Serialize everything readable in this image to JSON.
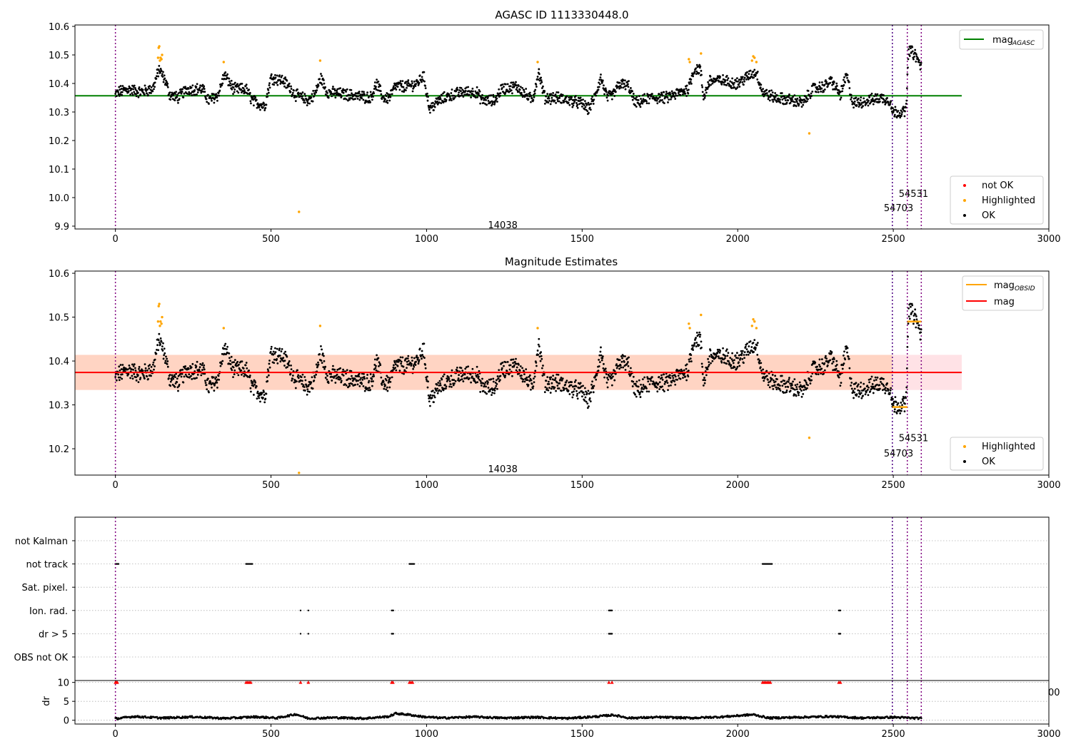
{
  "chart_data": [
    {
      "id": "top",
      "type": "scatter",
      "title": "AGASC ID 1113330448.0",
      "xlim": [
        -130,
        3000
      ],
      "ylim": [
        9.89,
        10.605
      ],
      "xticks": [
        0,
        500,
        1000,
        1500,
        2000,
        2500,
        3000
      ],
      "xtick_labels": [
        "0",
        "500",
        "1000",
        "1500",
        "2000",
        "2500",
        "3000"
      ],
      "yticks": [
        9.9,
        10.0,
        10.1,
        10.2,
        10.3,
        10.4,
        10.5,
        10.6
      ],
      "ytick_labels": [
        "9.9",
        "10.0",
        "10.1",
        "10.2",
        "10.3",
        "10.4",
        "10.5",
        "10.6"
      ],
      "grid": false,
      "series": [
        {
          "name": "not OK",
          "color": "#ff0000",
          "values": []
        },
        {
          "name": "Highlighted",
          "color": "#ffa500",
          "values": [
            [
              137,
              10.49
            ],
            [
              139,
              10.525
            ],
            [
              141,
              10.53
            ],
            [
              143,
              10.48
            ],
            [
              145,
              10.49
            ],
            [
              148,
              10.485
            ],
            [
              150,
              10.5
            ],
            [
              348,
              10.475
            ],
            [
              590,
              9.95
            ],
            [
              658,
              10.48
            ],
            [
              1357,
              10.475
            ],
            [
              1843,
              10.485
            ],
            [
              1846,
              10.475
            ],
            [
              1882,
              10.505
            ],
            [
              2046,
              10.48
            ],
            [
              2050,
              10.495
            ],
            [
              2054,
              10.49
            ],
            [
              2060,
              10.475
            ],
            [
              2230,
              10.225
            ]
          ]
        },
        {
          "name": "OK",
          "color": "#000000",
          "values": []
        }
      ],
      "ok_trend": [
        [
          0,
          10.36
        ],
        [
          10,
          10.37
        ],
        [
          40,
          10.38
        ],
        [
          80,
          10.37
        ],
        [
          120,
          10.38
        ],
        [
          140,
          10.45
        ],
        [
          160,
          10.41
        ],
        [
          175,
          10.36
        ],
        [
          200,
          10.35
        ],
        [
          230,
          10.38
        ],
        [
          280,
          10.38
        ],
        [
          300,
          10.34
        ],
        [
          330,
          10.36
        ],
        [
          350,
          10.43
        ],
        [
          380,
          10.38
        ],
        [
          420,
          10.38
        ],
        [
          440,
          10.34
        ],
        [
          480,
          10.32
        ],
        [
          500,
          10.42
        ],
        [
          540,
          10.41
        ],
        [
          580,
          10.36
        ],
        [
          620,
          10.34
        ],
        [
          640,
          10.36
        ],
        [
          660,
          10.42
        ],
        [
          680,
          10.37
        ],
        [
          750,
          10.36
        ],
        [
          820,
          10.35
        ],
        [
          840,
          10.4
        ],
        [
          860,
          10.35
        ],
        [
          880,
          10.35
        ],
        [
          900,
          10.39
        ],
        [
          940,
          10.39
        ],
        [
          970,
          10.4
        ],
        [
          990,
          10.43
        ],
        [
          1010,
          10.31
        ],
        [
          1040,
          10.34
        ],
        [
          1080,
          10.36
        ],
        [
          1120,
          10.37
        ],
        [
          1160,
          10.37
        ],
        [
          1180,
          10.34
        ],
        [
          1220,
          10.34
        ],
        [
          1240,
          10.38
        ],
        [
          1290,
          10.39
        ],
        [
          1320,
          10.36
        ],
        [
          1340,
          10.34
        ],
        [
          1360,
          10.44
        ],
        [
          1380,
          10.35
        ],
        [
          1420,
          10.35
        ],
        [
          1460,
          10.34
        ],
        [
          1500,
          10.33
        ],
        [
          1520,
          10.31
        ],
        [
          1540,
          10.35
        ],
        [
          1560,
          10.42
        ],
        [
          1580,
          10.35
        ],
        [
          1600,
          10.36
        ],
        [
          1620,
          10.4
        ],
        [
          1650,
          10.39
        ],
        [
          1670,
          10.33
        ],
        [
          1720,
          10.35
        ],
        [
          1770,
          10.35
        ],
        [
          1820,
          10.37
        ],
        [
          1840,
          10.38
        ],
        [
          1860,
          10.45
        ],
        [
          1880,
          10.45
        ],
        [
          1890,
          10.35
        ],
        [
          1910,
          10.41
        ],
        [
          1950,
          10.41
        ],
        [
          2000,
          10.4
        ],
        [
          2040,
          10.43
        ],
        [
          2060,
          10.44
        ],
        [
          2080,
          10.37
        ],
        [
          2120,
          10.35
        ],
        [
          2180,
          10.34
        ],
        [
          2210,
          10.33
        ],
        [
          2240,
          10.38
        ],
        [
          2280,
          10.39
        ],
        [
          2300,
          10.41
        ],
        [
          2330,
          10.36
        ],
        [
          2350,
          10.43
        ],
        [
          2370,
          10.33
        ],
        [
          2420,
          10.34
        ],
        [
          2460,
          10.35
        ],
        [
          2490,
          10.34
        ],
        [
          2497,
          10.3
        ],
        [
          2520,
          10.3
        ],
        [
          2540,
          10.3
        ],
        [
          2550,
          10.52
        ],
        [
          2570,
          10.5
        ],
        [
          2590,
          10.46
        ]
      ],
      "ok_spread": 0.018,
      "hlines": [
        {
          "name": "mag_AGASC",
          "y": 10.357,
          "x": [
            -130,
            2720
          ],
          "color": "#008000"
        }
      ],
      "vlines": [
        {
          "x": 0,
          "color": "#800080"
        },
        {
          "x": 2497,
          "color": "#4b0082"
        },
        {
          "x": 2545,
          "color": "#800080"
        },
        {
          "x": 2590,
          "color": "#800080"
        }
      ],
      "annotations": [
        {
          "text": "14038",
          "x": 1245,
          "y": 9.905
        },
        {
          "text": "54531",
          "x": 2565,
          "y": 10.015
        },
        {
          "text": "54703",
          "x": 2517,
          "y": 9.965
        }
      ],
      "legend_lines": [
        {
          "label_main": "mag",
          "label_sub": "AGASC",
          "color": "#008000",
          "position": "upper-right"
        }
      ],
      "legend_points": [
        "not OK",
        "Highlighted",
        "OK"
      ]
    },
    {
      "id": "middle",
      "type": "scatter",
      "title": "Magnitude Estimates",
      "xlim": [
        -130,
        3000
      ],
      "ylim": [
        10.14,
        10.605
      ],
      "xticks": [
        0,
        500,
        1000,
        1500,
        2000,
        2500,
        3000
      ],
      "xtick_labels": [
        "0",
        "500",
        "1000",
        "1500",
        "2000",
        "2500",
        "3000"
      ],
      "yticks": [
        10.2,
        10.3,
        10.4,
        10.5,
        10.6
      ],
      "ytick_labels": [
        "10.2",
        "10.3",
        "10.4",
        "10.5",
        "10.6"
      ],
      "grid": false,
      "series": [
        {
          "name": "Highlighted",
          "color": "#ffa500",
          "values": [
            [
              137,
              10.49
            ],
            [
              139,
              10.525
            ],
            [
              141,
              10.53
            ],
            [
              143,
              10.48
            ],
            [
              145,
              10.49
            ],
            [
              148,
              10.485
            ],
            [
              150,
              10.5
            ],
            [
              348,
              10.475
            ],
            [
              590,
              10.145
            ],
            [
              658,
              10.48
            ],
            [
              1357,
              10.475
            ],
            [
              1843,
              10.485
            ],
            [
              1846,
              10.475
            ],
            [
              1882,
              10.505
            ],
            [
              2046,
              10.48
            ],
            [
              2050,
              10.495
            ],
            [
              2054,
              10.49
            ],
            [
              2060,
              10.475
            ],
            [
              2230,
              10.225
            ]
          ]
        },
        {
          "name": "OK",
          "color": "#000000",
          "values": []
        }
      ],
      "hlines": [
        {
          "name": "mag",
          "y": 10.374,
          "x": [
            -130,
            2720
          ],
          "color": "#ff0000"
        }
      ],
      "bands": [
        {
          "y": [
            10.334,
            10.414
          ],
          "x": [
            -130,
            2497
          ],
          "color": "#ffa07a",
          "opacity": 0.45
        },
        {
          "y": [
            10.334,
            10.414
          ],
          "x": [
            2497,
            2720
          ],
          "color": "#ffb6c1",
          "opacity": 0.4
        }
      ],
      "segments": [
        {
          "x": [
            2497,
            2545
          ],
          "y": 10.295,
          "color": "#ffa500"
        },
        {
          "x": [
            2545,
            2590
          ],
          "y": 10.49,
          "color": "#ffa500"
        }
      ],
      "vlines": [
        {
          "x": 0,
          "color": "#800080"
        },
        {
          "x": 2497,
          "color": "#4b0082"
        },
        {
          "x": 2545,
          "color": "#800080"
        },
        {
          "x": 2590,
          "color": "#800080"
        }
      ],
      "annotations": [
        {
          "text": "14038",
          "x": 1245,
          "y": 10.155
        },
        {
          "text": "54531",
          "x": 2565,
          "y": 10.225
        },
        {
          "text": "54703",
          "x": 2517,
          "y": 10.19
        }
      ],
      "legend_lines": [
        {
          "label_main": "mag",
          "label_sub": "OBSID",
          "color": "#ffa500"
        },
        {
          "label_main": "mag",
          "label_sub": "",
          "color": "#ff0000"
        }
      ],
      "legend_points": [
        "Highlighted",
        "OK"
      ]
    },
    {
      "id": "flags",
      "type": "scatter",
      "xlim": [
        -130,
        3000
      ],
      "categories": [
        "not Kalman",
        "not track",
        "Sat. pixel.",
        "Ion. rad.",
        "dr > 5",
        "OBS not OK"
      ],
      "grid": true,
      "flags": {
        "not track": [
          [
            0,
            12
          ],
          [
            420,
            440
          ],
          [
            945,
            960
          ],
          [
            2080,
            2110
          ]
        ],
        "Ion. rad.": [
          [
            595,
            597
          ],
          [
            620,
            622
          ],
          [
            888,
            894
          ],
          [
            1586,
            1596
          ],
          [
            2325,
            2330
          ]
        ],
        "dr > 5": [
          [
            595,
            597
          ],
          [
            620,
            622
          ],
          [
            888,
            894
          ],
          [
            1586,
            1596
          ],
          [
            2325,
            2330
          ]
        ]
      },
      "vlines": [
        {
          "x": 0,
          "color": "#800080"
        },
        {
          "x": 2497,
          "color": "#4b0082"
        },
        {
          "x": 2545,
          "color": "#800080"
        },
        {
          "x": 2590,
          "color": "#800080"
        }
      ]
    },
    {
      "id": "dr",
      "type": "scatter",
      "xlim": [
        -130,
        3000
      ],
      "ylim": [
        -1,
        10.5
      ],
      "ylabel": "dr",
      "xticks": [
        0,
        500,
        1000,
        1500,
        2000,
        2500,
        3000
      ],
      "xtick_labels": [
        "0",
        "500",
        "1000",
        "1500",
        "2000",
        "2500",
        "3000"
      ],
      "yticks": [
        0,
        5,
        10
      ],
      "ytick_labels": [
        "0",
        "5",
        "10"
      ],
      "grid": true,
      "clipped_markers": {
        "y": 10,
        "color": "#ff0000",
        "x": [
          0,
          3,
          6,
          420,
          425,
          430,
          435,
          595,
          620,
          888,
          892,
          945,
          950,
          955,
          1586,
          1596,
          2080,
          2085,
          2090,
          2095,
          2100,
          2105,
          2325,
          2330
        ]
      },
      "series": [
        {
          "name": "dr",
          "color": "#000000",
          "values": []
        }
      ],
      "dr_trend": [
        [
          0,
          0.4
        ],
        [
          60,
          1.0
        ],
        [
          150,
          0.6
        ],
        [
          250,
          0.9
        ],
        [
          350,
          0.5
        ],
        [
          450,
          0.9
        ],
        [
          520,
          0.6
        ],
        [
          580,
          1.6
        ],
        [
          620,
          0.5
        ],
        [
          700,
          0.7
        ],
        [
          800,
          0.5
        ],
        [
          880,
          1.0
        ],
        [
          900,
          1.8
        ],
        [
          940,
          1.5
        ],
        [
          990,
          0.9
        ],
        [
          1050,
          0.6
        ],
        [
          1150,
          0.9
        ],
        [
          1250,
          0.6
        ],
        [
          1350,
          0.8
        ],
        [
          1450,
          0.5
        ],
        [
          1550,
          1.0
        ],
        [
          1600,
          1.4
        ],
        [
          1650,
          0.6
        ],
        [
          1750,
          0.8
        ],
        [
          1850,
          0.6
        ],
        [
          1950,
          0.9
        ],
        [
          2050,
          1.5
        ],
        [
          2100,
          0.6
        ],
        [
          2200,
          0.8
        ],
        [
          2300,
          1.0
        ],
        [
          2400,
          0.6
        ],
        [
          2500,
          0.8
        ],
        [
          2590,
          0.5
        ]
      ],
      "vlines": [
        {
          "x": 0,
          "color": "#800080"
        },
        {
          "x": 2497,
          "color": "#4b0082"
        },
        {
          "x": 2545,
          "color": "#800080"
        },
        {
          "x": 2590,
          "color": "#800080"
        }
      ],
      "stray_label": "00"
    }
  ]
}
